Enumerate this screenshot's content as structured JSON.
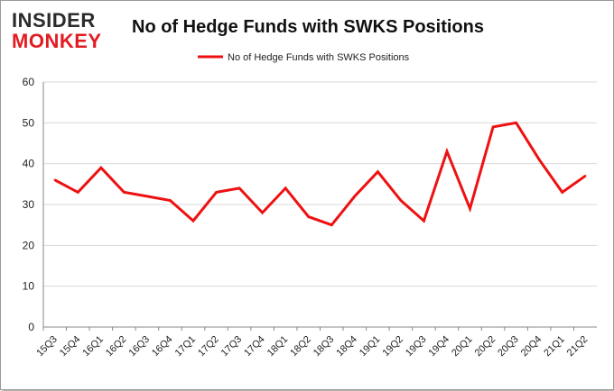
{
  "brand": {
    "line1": "INSIDER",
    "line2": "MONKEY"
  },
  "colors": {
    "series": "#ee1111",
    "grid": "#d9d9d9",
    "axis": "#888888",
    "brand_red": "#e21b22",
    "brand_dark": "#2b2b2b"
  },
  "chart_data": {
    "type": "line",
    "title": "No of Hedge Funds with SWKS Positions",
    "xlabel": "",
    "ylabel": "",
    "ylim": [
      0,
      60
    ],
    "yticks": [
      0,
      10,
      20,
      30,
      40,
      50,
      60
    ],
    "grid": true,
    "legend_position": "top-center",
    "categories": [
      "15Q3",
      "15Q4",
      "16Q1",
      "16Q2",
      "16Q3",
      "16Q4",
      "17Q1",
      "17Q2",
      "17Q3",
      "17Q4",
      "18Q1",
      "18Q2",
      "18Q3",
      "18Q4",
      "19Q1",
      "19Q2",
      "19Q3",
      "19Q4",
      "20Q1",
      "20Q2",
      "20Q3",
      "20Q4",
      "21Q1",
      "21Q2"
    ],
    "series": [
      {
        "name": "No of Hedge Funds with SWKS Positions",
        "values": [
          36,
          33,
          39,
          33,
          32,
          31,
          26,
          33,
          34,
          28,
          34,
          27,
          25,
          32,
          38,
          31,
          26,
          43,
          29,
          49,
          50,
          41,
          33,
          37
        ]
      }
    ]
  }
}
